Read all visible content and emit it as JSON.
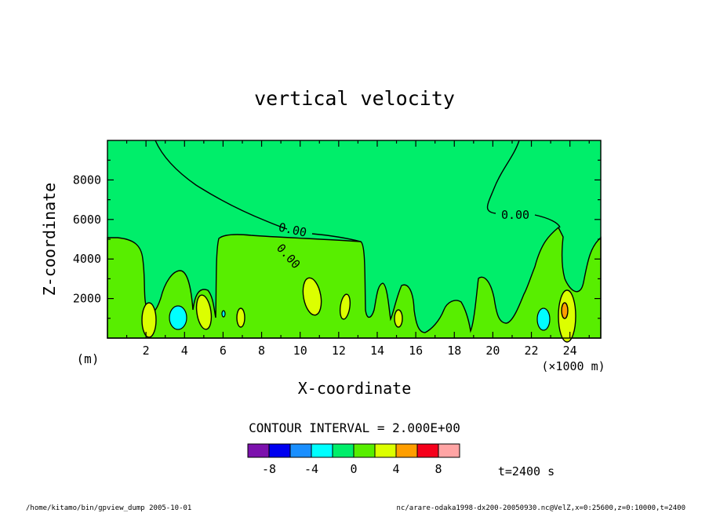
{
  "chart_data": {
    "type": "contour",
    "title": "vertical velocity",
    "xlabel": "X-coordinate",
    "ylabel": "Z-coordinate",
    "x_unit_label": "(×1000 m)",
    "y_unit_label": "(m)",
    "x_ticks": [
      "2",
      "4",
      "6",
      "8",
      "10",
      "12",
      "14",
      "16",
      "18",
      "20",
      "22",
      "24"
    ],
    "y_ticks": [
      "2000",
      "4000",
      "6000",
      "8000"
    ],
    "xlim": [
      0,
      25.6
    ],
    "ylim": [
      0,
      10000
    ],
    "contour_labels": [
      "0.00",
      "0.00",
      "0.00"
    ],
    "contour_interval_text": "CONTOUR INTERVAL = 2.000E+00",
    "colorbar": {
      "tick_labels": [
        "-8",
        "-4",
        "0",
        "4",
        "8"
      ],
      "colors": [
        "#7c11ad",
        "#0000f0",
        "#1a8fff",
        "#00ffff",
        "#00ee6a",
        "#58ee00",
        "#dcff00",
        "#ff9e00",
        "#f5001b",
        "#ffa4a4"
      ]
    },
    "time_label": "t=2400 s",
    "footer_left": "/home/kitamo/bin/gpview_dump  2005-10-01",
    "footer_right": "nc/arare-odaka1998-dx200-20050930.nc@VelZ,x=0:25600,z=0:10000,t=2400",
    "fill_colors": {
      "near_zero": "#00ee6a",
      "positive_2_4": "#58ee00",
      "positive_4_6": "#dcff00",
      "positive_6_8": "#ff9e00",
      "negative_2_4": "#00ffff"
    }
  }
}
